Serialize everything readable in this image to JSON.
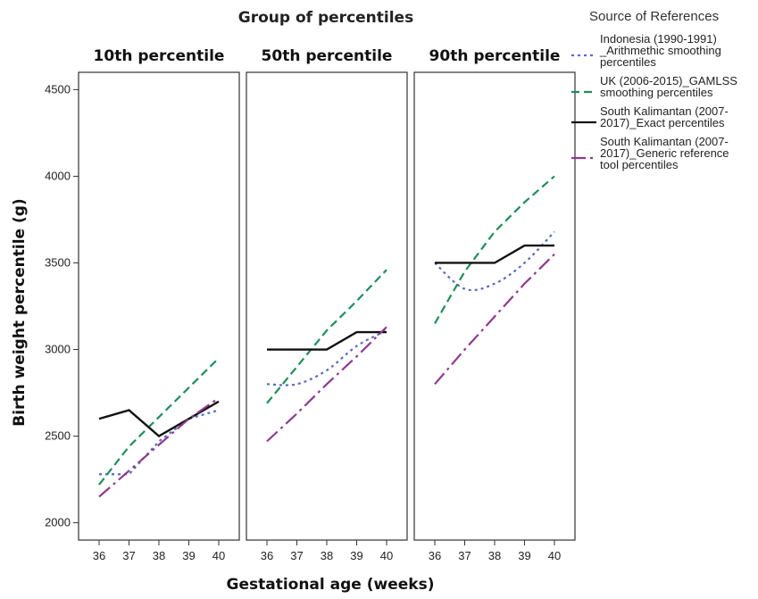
{
  "chart_data": {
    "type": "line",
    "title": "Group of percentiles",
    "xlabel": "Gestational age (weeks)",
    "ylabel": "Birth weight percentile (g)",
    "ylim": [
      1900,
      4600
    ],
    "yticks": [
      "2000",
      "2500",
      "3000",
      "3500",
      "4000",
      "4500"
    ],
    "categories": [
      "36",
      "37",
      "38",
      "39",
      "40"
    ],
    "legend": {
      "title": "Source of References",
      "placement": "right",
      "entries": [
        {
          "lines": [
            "Indonesia (1990-1991)",
            "_Arithmethic smoothing",
            "percentiles"
          ],
          "color": "#5c6bc0",
          "dash": "dotted"
        },
        {
          "lines": [
            "UK (2006-2015)_GAMLSS",
            "smoothing percentiles"
          ],
          "color": "#1e8e5a",
          "dash": "dashed"
        },
        {
          "lines": [
            "South Kalimantan (2007-",
            "2017)_Exact percentiles"
          ],
          "color": "#111111",
          "dash": "solid"
        },
        {
          "lines": [
            "South Kalimantan (2007-",
            "2017)_Generic reference",
            "tool percentiles"
          ],
          "color": "#8e3a8e",
          "dash": "dash-dot"
        }
      ]
    },
    "panels": [
      {
        "title": "10th percentile",
        "series": [
          {
            "values": [
              2280,
              2280,
              2470,
              2600,
              2650
            ]
          },
          {
            "values": [
              2220,
              2440,
              2610,
              2780,
              2950
            ]
          },
          {
            "values": [
              2600,
              2650,
              2500,
              2600,
              2700
            ]
          },
          {
            "values": [
              2150,
              2300,
              2450,
              2600,
              2720
            ]
          }
        ]
      },
      {
        "title": "50th percentile",
        "series": [
          {
            "values": [
              2800,
              2800,
              2880,
              3020,
              3110
            ]
          },
          {
            "values": [
              2690,
              2900,
              3110,
              3280,
              3460
            ]
          },
          {
            "values": [
              3000,
              3000,
              3000,
              3100,
              3100
            ]
          },
          {
            "values": [
              2470,
              2630,
              2800,
              2960,
              3130
            ]
          }
        ]
      },
      {
        "title": "90th percentile",
        "series": [
          {
            "values": [
              3500,
              3350,
              3380,
              3500,
              3680
            ]
          },
          {
            "values": [
              3150,
              3450,
              3680,
              3850,
              4000
            ]
          },
          {
            "values": [
              3500,
              3500,
              3500,
              3600,
              3600
            ]
          },
          {
            "values": [
              2800,
              3000,
              3190,
              3380,
              3550
            ]
          }
        ]
      }
    ],
    "grid": false
  }
}
